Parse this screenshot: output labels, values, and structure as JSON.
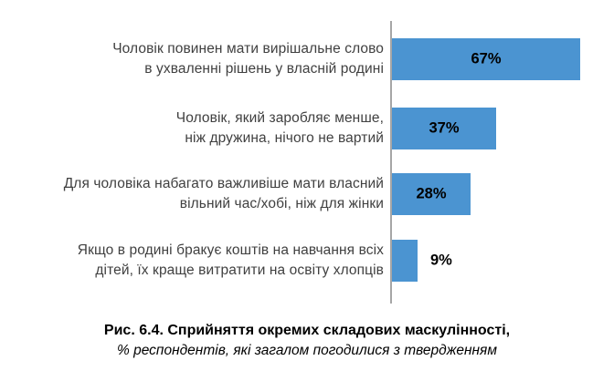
{
  "chart_data": {
    "type": "bar",
    "orientation": "horizontal",
    "title": "Рис. 6.4. Сприйняття окремих складових маскулінності,",
    "subtitle": "% респондентів, які загалом погодилися з твердженням",
    "value_unit": "%",
    "xlim": [
      0,
      70
    ],
    "grid": false,
    "legend": false,
    "bar_color": "#4b94d1",
    "axis_color": "#a6a6a6",
    "label_color": "#404040",
    "value_label_color": "#000000",
    "categories": [
      "Чоловік повинен мати вирішальне слово в ухваленні рішень у власній родині",
      "Чоловік, який заробляє менше, ніж дружина, нічого не вартий",
      "Для чоловіка набагато важливіше мати власний вільний час/хобі, ніж для жінки",
      "Якщо в родині бракує коштів на навчання всіх дітей, їх краще витратити на освіту хлопців"
    ],
    "values": [
      67,
      37,
      28,
      9
    ],
    "rows": [
      {
        "label_lines": [
          "Чоловік повинен мати вирішальне слово",
          "в ухваленні рішень у власній родині"
        ],
        "value": 67,
        "value_label": "67%",
        "value_label_position": "inside"
      },
      {
        "label_lines": [
          "Чоловік, який заробляє менше,",
          "ніж дружина, нічого не вартий"
        ],
        "value": 37,
        "value_label": "37%",
        "value_label_position": "inside"
      },
      {
        "label_lines": [
          "Для чоловіка набагато важливіше мати власний",
          "вільний час/хобі, ніж для жінки"
        ],
        "value": 28,
        "value_label": "28%",
        "value_label_position": "inside"
      },
      {
        "label_lines": [
          "Якщо в родині бракує коштів на навчання всіх",
          "дітей, їх краще витратити на освіту хлопців"
        ],
        "value": 9,
        "value_label": "9%",
        "value_label_position": "outside"
      }
    ]
  }
}
